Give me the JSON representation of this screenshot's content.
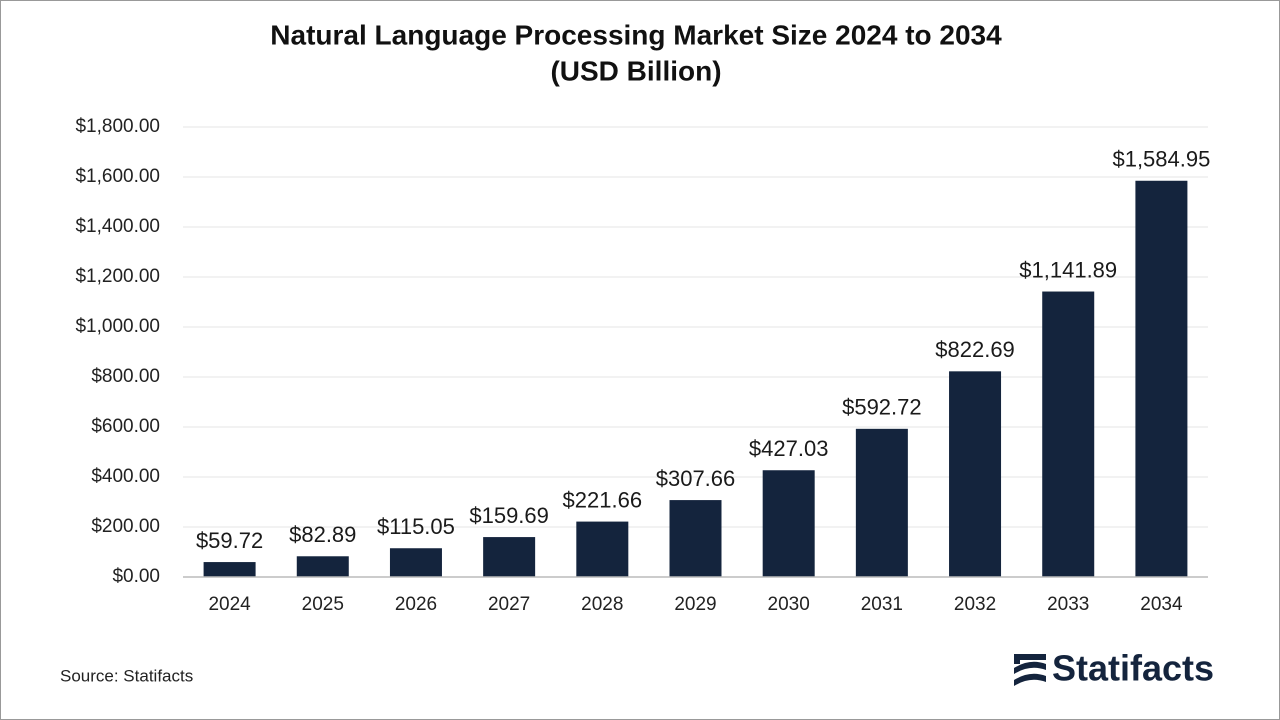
{
  "chart_data": {
    "type": "bar",
    "title": "Natural Language Processing Market Size 2024 to 2034",
    "subtitle": "(USD Billion)",
    "categories": [
      "2024",
      "2025",
      "2026",
      "2027",
      "2028",
      "2029",
      "2030",
      "2031",
      "2032",
      "2033",
      "2034"
    ],
    "values": [
      59.72,
      82.89,
      115.05,
      159.69,
      221.66,
      307.66,
      427.03,
      592.72,
      822.69,
      1141.89,
      1584.95
    ],
    "value_labels": [
      "$59.72",
      "$82.89",
      "$115.05",
      "$159.69",
      "$221.66",
      "$307.66",
      "$427.03",
      "$592.72",
      "$822.69",
      "$1,141.89",
      "$1,584.95"
    ],
    "color": "#14243d",
    "ylim": [
      0,
      1800
    ],
    "yticks": [
      {
        "value": 0,
        "label": "$0.00"
      },
      {
        "value": 200,
        "label": "$200.00"
      },
      {
        "value": 400,
        "label": "$400.00"
      },
      {
        "value": 600,
        "label": "$600.00"
      },
      {
        "value": 800,
        "label": "$800.00"
      },
      {
        "value": 1000,
        "label": "$1,000.00"
      },
      {
        "value": 1200,
        "label": "$1,200.00"
      },
      {
        "value": 1400,
        "label": "$1,400.00"
      },
      {
        "value": 1600,
        "label": "$1,600.00"
      },
      {
        "value": 1800,
        "label": "$1,800.00"
      }
    ],
    "grid": true,
    "source": "Source: Statifacts",
    "brand": "Statifacts"
  }
}
